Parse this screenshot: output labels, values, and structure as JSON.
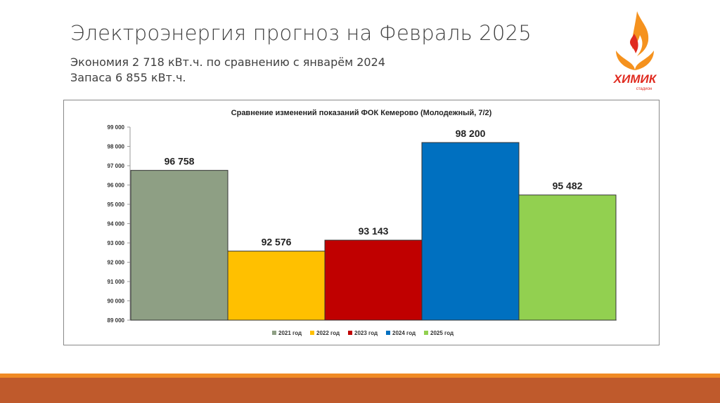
{
  "slide": {
    "title": "Электроэнергия прогноз на Февраль 2025",
    "subtitle_line1": "Экономия 2 718 кВт.ч. по сравнению с январём 2024",
    "subtitle_line2": "Запаса 6 855 кВт.ч."
  },
  "logo": {
    "name": "ХИМИК",
    "tagline": "стадион"
  },
  "colors": {
    "accent_stripe": "#f08a24",
    "footer_band": "#bf5a2c",
    "logo_orange": "#f5921e",
    "logo_red": "#e02b20"
  },
  "chart_data": {
    "type": "bar",
    "title": "Сравнение изменений показаний ФОК Кемерово (Молодежный, 7/2)",
    "categories": [
      "2021 год",
      "2022 год",
      "2023 год",
      "2024 год",
      "2025 год"
    ],
    "values": [
      96758,
      92576,
      93143,
      98200,
      95482
    ],
    "value_labels": [
      "96 758",
      "92 576",
      "93 143",
      "98 200",
      "95 482"
    ],
    "colors": [
      "#8e9f84",
      "#ffc000",
      "#c00000",
      "#0070c0",
      "#92d050"
    ],
    "ylim": [
      89000,
      99000
    ],
    "yticks": [
      99000,
      98000,
      97000,
      96000,
      95000,
      94000,
      93000,
      92000,
      91000,
      90000,
      89000
    ],
    "ytick_labels": [
      "99 000",
      "98 000",
      "97 000",
      "96 000",
      "95 000",
      "94 000",
      "93 000",
      "92 000",
      "91 000",
      "90 000",
      "89 000"
    ],
    "xlabel": "",
    "ylabel": "",
    "grid": false,
    "legend": "bottom"
  }
}
